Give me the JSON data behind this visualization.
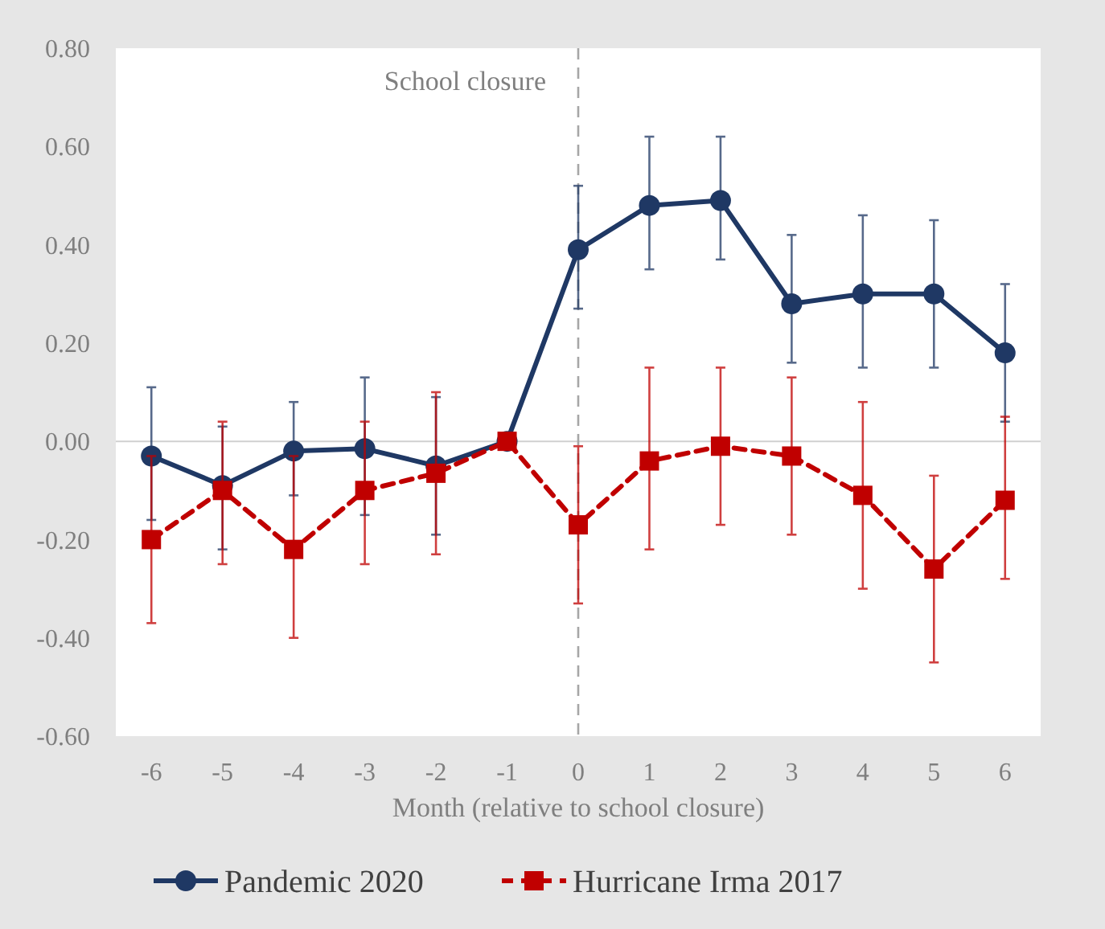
{
  "chart_data": {
    "type": "line",
    "xlabel": "Month (relative to school closure)",
    "x": [
      -6,
      -5,
      -4,
      -3,
      -2,
      -1,
      0,
      1,
      2,
      3,
      4,
      5,
      6
    ],
    "xlim": [
      -6.5,
      6.5
    ],
    "xticks": [
      -6,
      -5,
      -4,
      -3,
      -2,
      -1,
      0,
      1,
      2,
      3,
      4,
      5,
      6
    ],
    "ylim": [
      -0.6,
      0.8
    ],
    "yticks": [
      {
        "value": -0.6,
        "label": "-0.60"
      },
      {
        "value": -0.4,
        "label": "-0.40"
      },
      {
        "value": -0.2,
        "label": "-0.20"
      },
      {
        "value": 0,
        "label": "0.00"
      },
      {
        "value": 0.2,
        "label": "0.20"
      },
      {
        "value": 0.4,
        "label": "0.40"
      },
      {
        "value": 0.6,
        "label": "0.60"
      },
      {
        "value": 0.8,
        "label": "0.80"
      }
    ],
    "legend": "bottom",
    "grid": false,
    "ref_lines": [
      {
        "axis": "x",
        "value": 0,
        "label": "School closure",
        "color": "#a6a6a6",
        "line_style": "dashed"
      }
    ],
    "series": [
      {
        "name": "Pandemic 2020",
        "color": "#1f3864",
        "marker": "circle",
        "line_style": "solid",
        "values": [
          -0.03,
          -0.09,
          -0.02,
          -0.015,
          -0.05,
          0,
          0.39,
          0.48,
          0.49,
          0.28,
          0.3,
          0.3,
          0.18
        ],
        "errors": [
          [
            -0.16,
            0.11
          ],
          [
            -0.22,
            0.03
          ],
          [
            -0.11,
            0.08
          ],
          [
            -0.15,
            0.13
          ],
          [
            -0.19,
            0.09
          ],
          null,
          [
            0.27,
            0.52
          ],
          [
            0.35,
            0.62
          ],
          [
            0.37,
            0.62
          ],
          [
            0.16,
            0.42
          ],
          [
            0.15,
            0.46
          ],
          [
            0.15,
            0.45
          ],
          [
            0.04,
            0.32
          ]
        ]
      },
      {
        "name": "Hurricane Irma 2017",
        "color": "#c00000",
        "marker": "square",
        "line_style": "dashed",
        "values": [
          -0.2,
          -0.1,
          -0.22,
          -0.1,
          -0.065,
          0,
          -0.17,
          -0.04,
          -0.01,
          -0.03,
          -0.11,
          -0.26,
          -0.12
        ],
        "errors": [
          [
            -0.37,
            -0.03
          ],
          [
            -0.25,
            0.04
          ],
          [
            -0.4,
            -0.03
          ],
          [
            -0.25,
            0.04
          ],
          [
            -0.23,
            0.1
          ],
          null,
          [
            -0.33,
            -0.01
          ],
          [
            -0.22,
            0.15
          ],
          [
            -0.17,
            0.15
          ],
          [
            -0.19,
            0.13
          ],
          [
            -0.3,
            0.08
          ],
          [
            -0.45,
            -0.07
          ],
          [
            -0.28,
            0.05
          ]
        ]
      }
    ]
  }
}
